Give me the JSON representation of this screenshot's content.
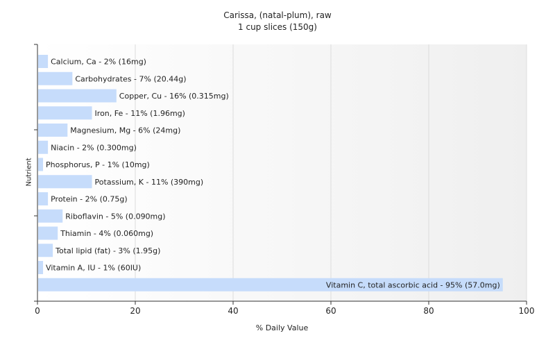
{
  "chart_data": {
    "type": "bar",
    "orientation": "horizontal",
    "title": "Carissa, (natal-plum), raw",
    "subtitle": "1 cup slices (150g)",
    "xlabel": "% Daily Value",
    "ylabel": "Nutrient",
    "xlim": [
      0,
      100
    ],
    "xticks": [
      "0",
      "20",
      "40",
      "60",
      "80",
      "100"
    ],
    "grid": true,
    "bar_color": "#c6dcfb",
    "categories": [
      "Calcium, Ca",
      "Carbohydrates",
      "Copper, Cu",
      "Iron, Fe",
      "Magnesium, Mg",
      "Niacin",
      "Phosphorus, P",
      "Potassium, K",
      "Protein",
      "Riboflavin",
      "Thiamin",
      "Total lipid (fat)",
      "Vitamin A, IU",
      "Vitamin C, total ascorbic acid"
    ],
    "values": [
      2,
      7,
      16,
      11,
      6,
      2,
      1,
      11,
      2,
      5,
      4,
      3,
      1,
      95
    ],
    "data_labels": [
      "Calcium, Ca - 2% (16mg)",
      "Carbohydrates - 7% (20.44g)",
      "Copper, Cu - 16% (0.315mg)",
      "Iron, Fe - 11% (1.96mg)",
      "Magnesium, Mg - 6% (24mg)",
      "Niacin - 2% (0.300mg)",
      "Phosphorus, P - 1% (10mg)",
      "Potassium, K - 11% (390mg)",
      "Protein - 2% (0.75g)",
      "Riboflavin - 5% (0.090mg)",
      "Thiamin - 4% (0.060mg)",
      "Total lipid (fat) - 3% (1.95g)",
      "Vitamin A, IU - 1% (60IU)",
      "Vitamin C, total ascorbic acid - 95% (57.0mg)"
    ]
  }
}
